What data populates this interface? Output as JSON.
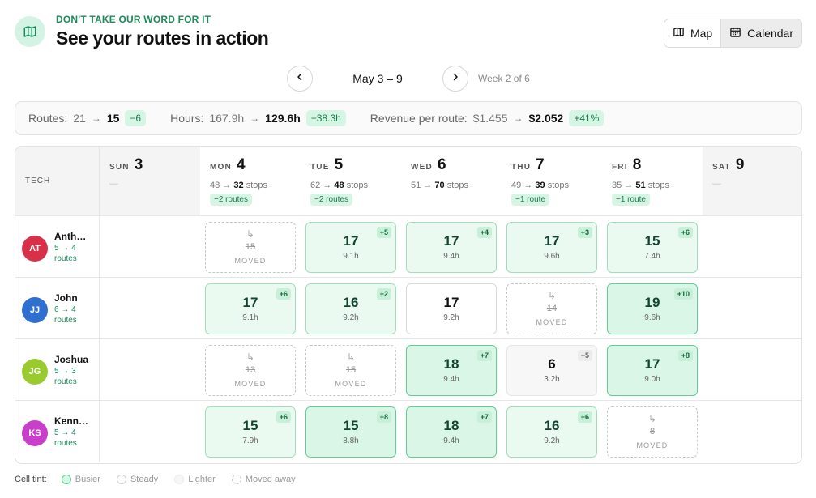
{
  "header": {
    "eyebrow": "DON'T TAKE OUR WORD FOR IT",
    "title": "See your routes in action",
    "logo_icon": "map-icon"
  },
  "view_toggle": {
    "options": [
      {
        "label": "Map",
        "icon": "map-icon"
      },
      {
        "label": "Calendar",
        "icon": "calendar-icon",
        "active": true
      }
    ]
  },
  "week_nav": {
    "range": "May 3 – 9",
    "week_label": "Week 2 of 6"
  },
  "stats": [
    {
      "label": "Routes:",
      "old": "21",
      "new": "15",
      "delta": "−6"
    },
    {
      "label": "Hours:",
      "old": "167.9h",
      "new": "129.6h",
      "delta": "−38.3h"
    },
    {
      "label": "Revenue per route:",
      "old": "$1.455",
      "new": "$2.052",
      "delta": "+41%"
    }
  ],
  "grid": {
    "tech_header": "TECH",
    "days": [
      {
        "name": "SUN",
        "date": "3",
        "weekend": true,
        "empty": "—"
      },
      {
        "name": "MON",
        "date": "4",
        "stops_old": "48",
        "stops_new": "32",
        "stops_unit": "stops",
        "routes": "−2 routes"
      },
      {
        "name": "TUE",
        "date": "5",
        "stops_old": "62",
        "stops_new": "48",
        "stops_unit": "stops",
        "routes": "−2 routes"
      },
      {
        "name": "WED",
        "date": "6",
        "stops_old": "51",
        "stops_new": "70",
        "stops_unit": "stops"
      },
      {
        "name": "THU",
        "date": "7",
        "stops_old": "49",
        "stops_new": "39",
        "stops_unit": "stops",
        "routes": "−1 route"
      },
      {
        "name": "FRI",
        "date": "8",
        "stops_old": "35",
        "stops_new": "51",
        "stops_unit": "stops",
        "routes": "−1 route"
      },
      {
        "name": "SAT",
        "date": "9",
        "weekend": true,
        "empty": "—"
      }
    ],
    "techs": [
      {
        "initials": "AT",
        "name": "Anthony",
        "routes_line": "5 → 4",
        "routes_word": "routes",
        "color": "#d9304a",
        "cells": [
          {
            "day": 1,
            "type": "moved",
            "value": "15",
            "label": "MOVED"
          },
          {
            "day": 2,
            "type": "busy",
            "value": "17",
            "hours": "9.1h",
            "delta": "+5"
          },
          {
            "day": 3,
            "type": "busy",
            "value": "17",
            "hours": "9.4h",
            "delta": "+4"
          },
          {
            "day": 4,
            "type": "busy",
            "value": "17",
            "hours": "9.6h",
            "delta": "+3"
          },
          {
            "day": 5,
            "type": "busy",
            "value": "15",
            "hours": "7.4h",
            "delta": "+6"
          }
        ]
      },
      {
        "initials": "JJ",
        "name": "John",
        "routes_line": "6 → 4",
        "routes_word": "routes",
        "color": "#2f6fd0",
        "cells": [
          {
            "day": 1,
            "type": "busy",
            "value": "17",
            "hours": "9.1h",
            "delta": "+6"
          },
          {
            "day": 2,
            "type": "busy",
            "value": "16",
            "hours": "9.2h",
            "delta": "+2"
          },
          {
            "day": 3,
            "type": "steady",
            "value": "17",
            "hours": "9.2h"
          },
          {
            "day": 4,
            "type": "moved",
            "value": "14",
            "label": "MOVED"
          },
          {
            "day": 5,
            "type": "busier",
            "value": "19",
            "hours": "9.6h",
            "delta": "+10"
          }
        ]
      },
      {
        "initials": "JG",
        "name": "Joshua",
        "routes_line": "5 → 3",
        "routes_word": "routes",
        "color": "#9acb2e",
        "cells": [
          {
            "day": 1,
            "type": "moved",
            "value": "13",
            "label": "MOVED"
          },
          {
            "day": 2,
            "type": "moved",
            "value": "15",
            "label": "MOVED"
          },
          {
            "day": 3,
            "type": "busier",
            "value": "18",
            "hours": "9.4h",
            "delta": "+7"
          },
          {
            "day": 4,
            "type": "lighter",
            "value": "6",
            "hours": "3.2h",
            "delta": "−5"
          },
          {
            "day": 5,
            "type": "busier",
            "value": "17",
            "hours": "9.0h",
            "delta": "+8"
          }
        ]
      },
      {
        "initials": "KS",
        "name": "Kenneth",
        "routes_line": "5 → 4",
        "routes_word": "routes",
        "color": "#c93fc9",
        "cells": [
          {
            "day": 1,
            "type": "busy",
            "value": "15",
            "hours": "7.9h",
            "delta": "+6"
          },
          {
            "day": 2,
            "type": "busier",
            "value": "15",
            "hours": "8.8h",
            "delta": "+8"
          },
          {
            "day": 3,
            "type": "busier",
            "value": "18",
            "hours": "9.4h",
            "delta": "+7"
          },
          {
            "day": 4,
            "type": "busy",
            "value": "16",
            "hours": "9.2h",
            "delta": "+6"
          },
          {
            "day": 5,
            "type": "moved",
            "value": "8",
            "label": "MOVED"
          }
        ]
      }
    ]
  },
  "legend": {
    "label": "Cell tint:",
    "items": [
      {
        "key": "busier",
        "label": "Busier"
      },
      {
        "key": "steady",
        "label": "Steady"
      },
      {
        "key": "lighter",
        "label": "Lighter"
      },
      {
        "key": "moved",
        "label": "Moved away"
      }
    ]
  }
}
